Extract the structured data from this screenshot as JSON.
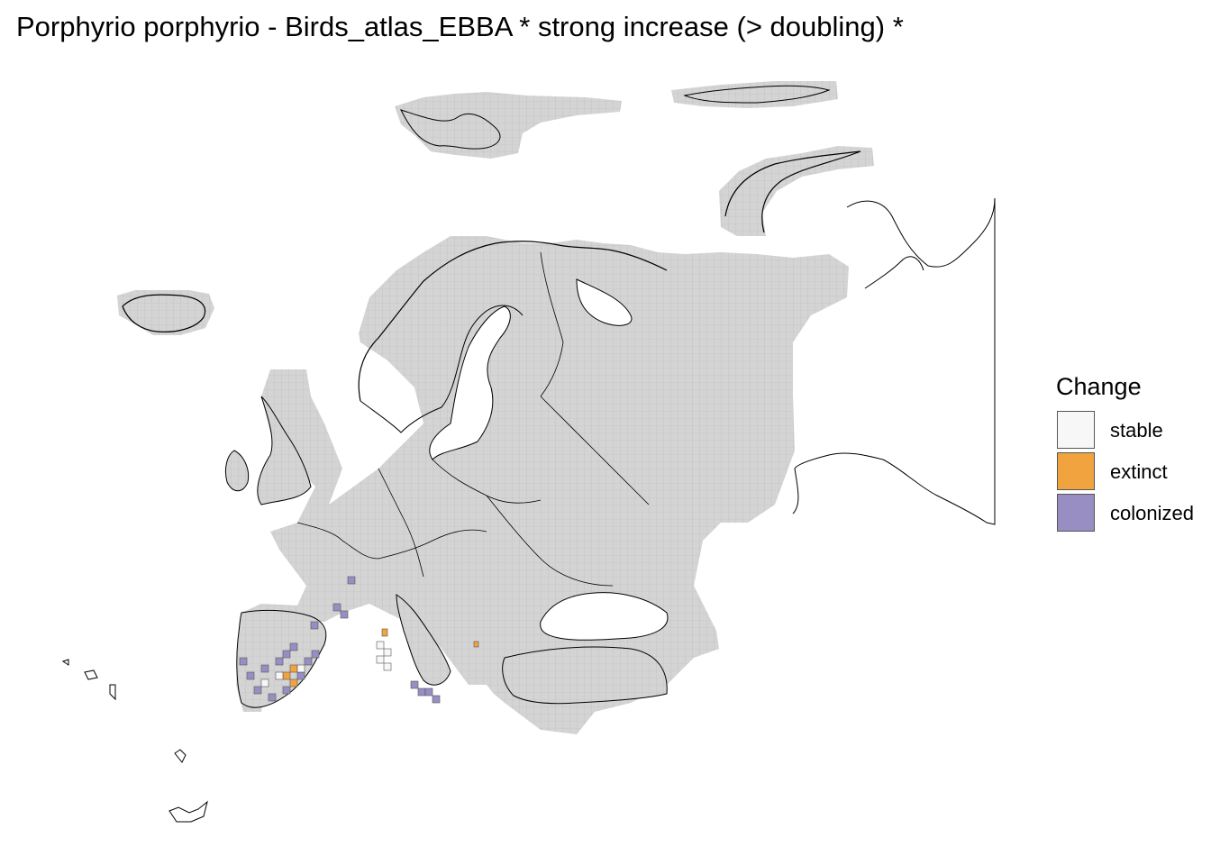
{
  "title": "Porphyrio porphyrio - Birds_atlas_EBBA * strong increase (> doubling) *",
  "legend": {
    "title": "Change",
    "items": [
      {
        "key": "stable",
        "label": "stable",
        "color": "#f7f7f7"
      },
      {
        "key": "extinct",
        "label": "extinct",
        "color": "#f1a340"
      },
      {
        "key": "colonized",
        "label": "colonized",
        "color": "#998ec3"
      }
    ]
  },
  "colors": {
    "no_data_grid": "#d9d9d9",
    "grid_line": "#bdbdbd",
    "border": "#000000"
  }
}
